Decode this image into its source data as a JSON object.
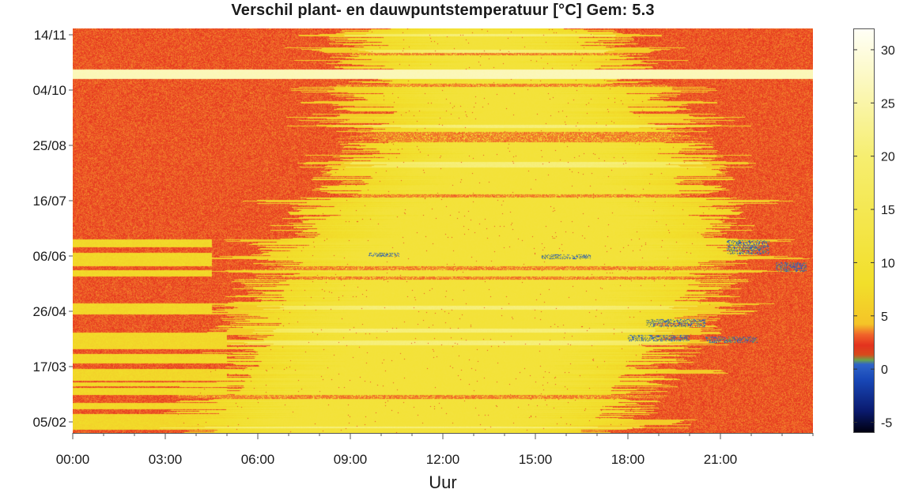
{
  "chart_data": {
    "type": "heatmap",
    "title": "Verschil plant- en dauwpuntstemperatuur [°C] Gem: 5.3",
    "xlabel": "Uur",
    "ylabel": "",
    "x_ticks": [
      "00:00",
      "03:00",
      "06:00",
      "09:00",
      "12:00",
      "15:00",
      "18:00",
      "21:00"
    ],
    "x_tick_hours": [
      0,
      3,
      6,
      9,
      12,
      15,
      18,
      21
    ],
    "xlim_hours": [
      0,
      24
    ],
    "y_ticks": [
      "14/11",
      "04/10",
      "25/08",
      "16/07",
      "06/06",
      "26/04",
      "17/03",
      "05/02"
    ],
    "colorbar": {
      "ticks": [
        30,
        25,
        20,
        15,
        10,
        5,
        0,
        -5
      ],
      "range": [
        -6,
        32
      ],
      "colors": [
        {
          "value": -6,
          "color": "#000010"
        },
        {
          "value": -4,
          "color": "#0a1a6e"
        },
        {
          "value": -1,
          "color": "#1848b8"
        },
        {
          "value": 0.4,
          "color": "#2f64c8"
        },
        {
          "value": 0.8,
          "color": "#6aa24a"
        },
        {
          "value": 1.3,
          "color": "#d84a1c"
        },
        {
          "value": 2.2,
          "color": "#e4321e"
        },
        {
          "value": 3.2,
          "color": "#f0642a"
        },
        {
          "value": 4.2,
          "color": "#f4c428"
        },
        {
          "value": 8,
          "color": "#f2df2a"
        },
        {
          "value": 20,
          "color": "#f6ee70"
        },
        {
          "value": 32,
          "color": "#fffff6"
        }
      ]
    },
    "mean": 5.3
  }
}
